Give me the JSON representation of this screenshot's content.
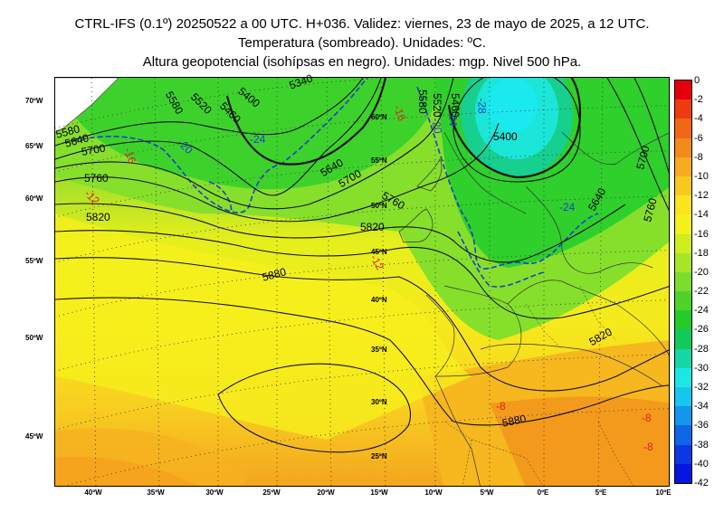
{
  "title": {
    "line1": "CTRL-IFS (0.1º) 20250522 a 00 UTC. H+036. Validez: viernes, 23 de mayo de 2025, a 12 UTC.",
    "line2": "Temperatura (sombreado). Unidades: ºC.",
    "line3": "Altura geopotencial (isohípsas en negro). Unidades: mgp. Nivel 500 hPa."
  },
  "axes": {
    "left_lat_labels": [
      "70ºW",
      "65ºW",
      "60ºW",
      "55ºW",
      "50ºW",
      "45ºW"
    ],
    "bottom_lon_labels": [
      "40ºW",
      "35ºW",
      "30ºW",
      "25ºW",
      "20ºW",
      "15ºW",
      "10ºW",
      "5ºW",
      "0ºE",
      "5ºE",
      "10ºE"
    ],
    "inner_lat_labels": [
      "60ºN",
      "55ºN",
      "50ºN",
      "45ºN",
      "40ºN",
      "35ºN",
      "30ºN",
      "25ºN"
    ]
  },
  "colorbar": {
    "ticks": [
      "0",
      "-2",
      "-4",
      "-6",
      "-8",
      "-10",
      "-12",
      "-14",
      "-16",
      "-18",
      "-20",
      "-22",
      "-24",
      "-26",
      "-28",
      "-30",
      "-32",
      "-34",
      "-36",
      "-38",
      "-40",
      "-42"
    ],
    "colors": [
      "#e4000a",
      "#ee3b0e",
      "#f26716",
      "#f38a1c",
      "#f6ab20",
      "#f8c820",
      "#f9e41d",
      "#f4f11c",
      "#cfed1f",
      "#a6e52a",
      "#7cdd2c",
      "#4fd32b",
      "#24cb2a",
      "#12c95b",
      "#16d7a6",
      "#1be8e2",
      "#17c6ee",
      "#1396ec",
      "#0f67e8",
      "#0b38e4",
      "#0616e0"
    ]
  },
  "contour_labels": {
    "geopotential": [
      "5580",
      "5640",
      "5700",
      "5760",
      "5820",
      "5880",
      "5520",
      "5460",
      "5400",
      "5340",
      "5580",
      "5640",
      "5700",
      "5760",
      "5820",
      "5460",
      "5520",
      "5580",
      "5400",
      "5640",
      "5700",
      "5760",
      "5820",
      "5880"
    ],
    "temperature_red": [
      "-16",
      "-12",
      "-16",
      "-12",
      "-8",
      "-8",
      "-8"
    ],
    "temperature_blue": [
      "-24",
      "-20",
      "-24",
      "-20",
      "-28",
      "-24"
    ]
  }
}
